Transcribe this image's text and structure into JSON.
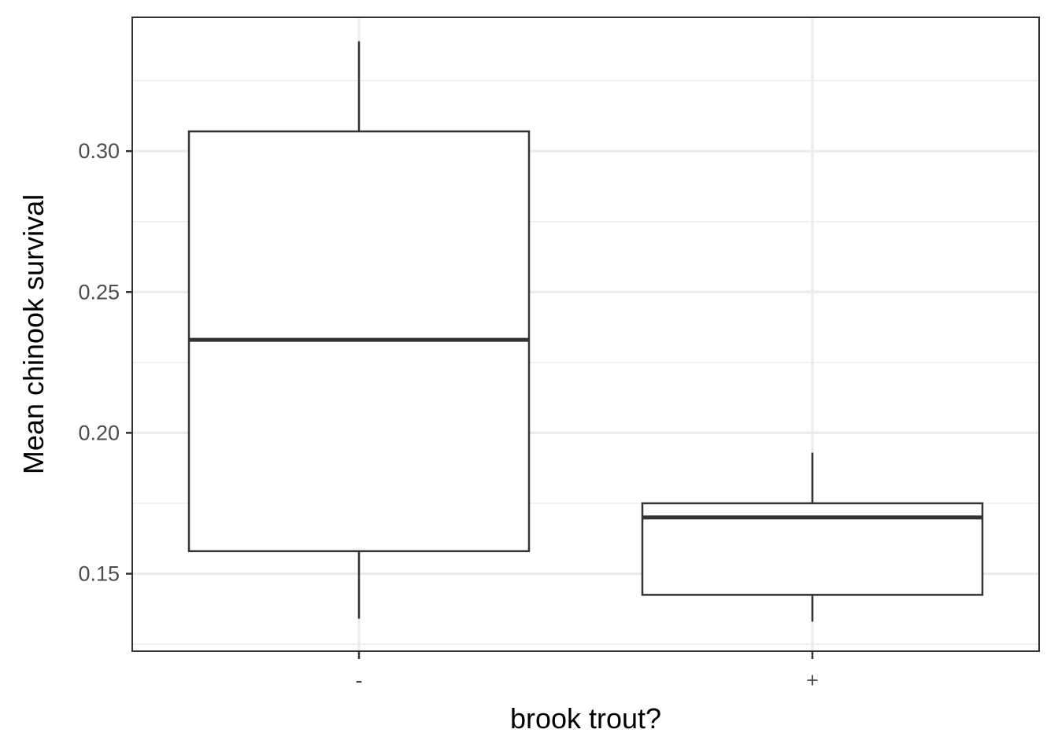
{
  "chart_data": {
    "type": "boxplot",
    "title": "",
    "xlabel": "brook trout?",
    "ylabel": "Mean chinook survival",
    "categories": [
      "-",
      "+"
    ],
    "boxes": [
      {
        "category": "-",
        "whisker_low": 0.134,
        "q1": 0.158,
        "median": 0.233,
        "q3": 0.307,
        "whisker_high": 0.339
      },
      {
        "category": "+",
        "whisker_low": 0.133,
        "q1": 0.1425,
        "median": 0.17,
        "q3": 0.175,
        "whisker_high": 0.193
      }
    ],
    "ylim": [
      0.1225,
      0.3475
    ],
    "yticks": [
      0.15,
      0.2,
      0.25,
      0.3
    ],
    "ytick_labels": [
      "0.15",
      "0.20",
      "0.25",
      "0.30"
    ],
    "yminor": [
      0.125,
      0.175,
      0.225,
      0.275,
      0.325
    ],
    "grid": true,
    "legend": "none",
    "colors": {
      "box_fill": "#ffffff",
      "box_stroke": "#333333",
      "grid": "#ebebeb",
      "tick_text": "#4d4d4d"
    }
  }
}
